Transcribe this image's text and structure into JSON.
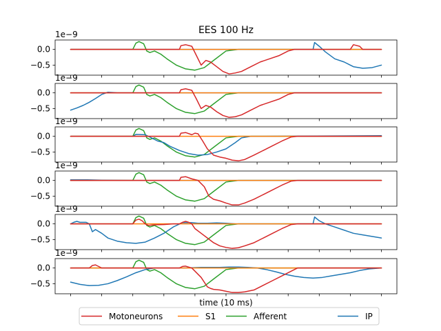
{
  "chart_data": {
    "type": "line",
    "title": "EES 100 Hz",
    "xlabel": "time (10 ms)",
    "ylabel": "",
    "offset_label": "1e−9",
    "yticks": [
      0.0,
      -0.5
    ],
    "ytick_labels": [
      "0.0",
      "−0.5"
    ],
    "xlim": [
      0,
      100
    ],
    "ylim": [
      -0.82,
      0.3
    ],
    "legend": {
      "placement": "bottom-center",
      "entries": [
        "Motoneurons",
        "S1",
        "Afferent",
        "IP"
      ]
    },
    "colors": {
      "Motoneurons": "#d62728",
      "S1": "#ff7f0e",
      "Afferent": "#2ca02c",
      "IP": "#1f77b4"
    },
    "subplots": [
      {
        "series": [
          {
            "name": "IP",
            "x": [
              0,
              78,
              78.5,
              80,
              82,
              85,
              88,
              91,
              94,
              97,
              100
            ],
            "y": [
              0,
              0,
              0.22,
              0.1,
              -0.08,
              -0.3,
              -0.4,
              -0.55,
              -0.6,
              -0.58,
              -0.5
            ]
          },
          {
            "name": "S1",
            "x": [
              0,
              100
            ],
            "y": [
              0,
              0
            ]
          },
          {
            "name": "Afferent",
            "x": [
              0,
              20,
              21,
              22,
              23.5,
              24.5,
              25.5,
              27,
              29,
              31,
              34,
              37,
              40,
              43,
              46,
              50,
              54,
              72,
              100
            ],
            "y": [
              0,
              0,
              0.2,
              0.25,
              0.18,
              -0.05,
              -0.1,
              -0.05,
              -0.15,
              -0.3,
              -0.5,
              -0.62,
              -0.66,
              -0.58,
              -0.35,
              -0.05,
              0,
              0,
              0
            ]
          },
          {
            "name": "Motoneurons",
            "x": [
              0,
              35,
              35.5,
              37,
              39,
              40.5,
              42,
              43.5,
              45,
              47,
              49,
              51,
              53,
              55,
              58,
              61,
              64,
              67,
              70,
              72,
              74,
              90,
              91,
              93,
              94,
              100
            ],
            "y": [
              0,
              0,
              0.12,
              0.15,
              0.1,
              -0.2,
              -0.5,
              -0.35,
              -0.4,
              -0.55,
              -0.7,
              -0.78,
              -0.75,
              -0.7,
              -0.55,
              -0.4,
              -0.3,
              -0.2,
              -0.05,
              0,
              0,
              0,
              0.15,
              0.1,
              0,
              0
            ]
          }
        ]
      },
      {
        "series": [
          {
            "name": "IP",
            "x": [
              0,
              2,
              4,
              6,
              8,
              10,
              12,
              14,
              15,
              17,
              20,
              30,
              40,
              100
            ],
            "y": [
              -0.55,
              -0.48,
              -0.4,
              -0.3,
              -0.18,
              -0.05,
              0.02,
              0.01,
              0,
              0,
              0,
              0,
              0,
              0
            ]
          },
          {
            "name": "S1",
            "x": [
              0,
              100
            ],
            "y": [
              0,
              0
            ]
          },
          {
            "name": "Afferent",
            "x": [
              0,
              20,
              21,
              22,
              23.5,
              24.5,
              25.5,
              27,
              29,
              31,
              34,
              37,
              40,
              43,
              46,
              50,
              54,
              72,
              100
            ],
            "y": [
              0,
              0,
              0.2,
              0.25,
              0.18,
              -0.05,
              -0.1,
              -0.05,
              -0.15,
              -0.3,
              -0.5,
              -0.62,
              -0.66,
              -0.58,
              -0.35,
              -0.05,
              0,
              0,
              0
            ]
          },
          {
            "name": "Motoneurons",
            "x": [
              0,
              35,
              35.5,
              37,
              39,
              40.5,
              42,
              43.5,
              45,
              47,
              49,
              51,
              53,
              55,
              58,
              61,
              64,
              67,
              70,
              72,
              74,
              100
            ],
            "y": [
              0,
              0,
              0.1,
              0.13,
              0.08,
              -0.2,
              -0.5,
              -0.4,
              -0.45,
              -0.6,
              -0.72,
              -0.78,
              -0.76,
              -0.7,
              -0.55,
              -0.4,
              -0.3,
              -0.2,
              -0.05,
              0,
              0,
              0
            ]
          }
        ]
      },
      {
        "series": [
          {
            "name": "IP",
            "x": [
              0,
              20,
              21,
              24,
              26,
              28,
              30,
              32,
              35,
              38,
              41,
              44,
              47,
              50,
              53,
              55,
              58,
              62,
              100
            ],
            "y": [
              0,
              0,
              0.06,
              0.05,
              -0.05,
              -0.15,
              -0.2,
              -0.32,
              -0.45,
              -0.55,
              -0.6,
              -0.58,
              -0.5,
              -0.4,
              -0.2,
              -0.05,
              0,
              0,
              0.02
            ]
          },
          {
            "name": "S1",
            "x": [
              0,
              100
            ],
            "y": [
              0,
              0
            ]
          },
          {
            "name": "Afferent",
            "x": [
              0,
              20,
              21,
              22,
              23.5,
              24.5,
              25.5,
              27,
              29,
              31,
              34,
              37,
              40,
              43,
              46,
              50,
              54,
              72,
              100
            ],
            "y": [
              0,
              0,
              0.2,
              0.25,
              0.18,
              -0.05,
              -0.1,
              -0.05,
              -0.15,
              -0.3,
              -0.5,
              -0.62,
              -0.66,
              -0.58,
              -0.35,
              -0.05,
              0,
              0,
              0
            ]
          },
          {
            "name": "Motoneurons",
            "x": [
              0,
              35,
              35.5,
              37,
              39,
              40,
              41,
              42.5,
              44,
              46,
              48,
              50,
              52,
              54,
              56,
              59,
              62,
              65,
              68,
              71,
              73,
              100
            ],
            "y": [
              0,
              0,
              0.1,
              0.12,
              0.05,
              0.1,
              0.08,
              -0.15,
              -0.4,
              -0.6,
              -0.66,
              -0.7,
              -0.76,
              -0.78,
              -0.74,
              -0.6,
              -0.45,
              -0.3,
              -0.15,
              -0.02,
              0,
              0
            ]
          }
        ]
      },
      {
        "series": [
          {
            "name": "IP",
            "x": [
              0,
              5,
              10,
              20,
              100
            ],
            "y": [
              0.02,
              0.02,
              0.01,
              0,
              0
            ]
          },
          {
            "name": "S1",
            "x": [
              0,
              100
            ],
            "y": [
              0,
              0
            ]
          },
          {
            "name": "Afferent",
            "x": [
              0,
              20,
              21,
              22,
              23.5,
              24.5,
              25.5,
              27,
              29,
              31,
              34,
              37,
              40,
              43,
              46,
              50,
              54,
              72,
              100
            ],
            "y": [
              0,
              0,
              0.2,
              0.25,
              0.18,
              -0.05,
              -0.1,
              -0.05,
              -0.15,
              -0.3,
              -0.5,
              -0.62,
              -0.66,
              -0.58,
              -0.35,
              -0.05,
              0,
              0,
              0
            ]
          },
          {
            "name": "Motoneurons",
            "x": [
              0,
              35,
              35.5,
              37,
              39,
              41,
              43,
              44.5,
              46,
              48,
              50,
              52,
              54,
              56,
              59,
              62,
              65,
              68,
              71,
              73,
              100
            ],
            "y": [
              0,
              0,
              0.1,
              0.12,
              0.05,
              0,
              -0.2,
              -0.5,
              -0.6,
              -0.65,
              -0.72,
              -0.78,
              -0.78,
              -0.72,
              -0.6,
              -0.45,
              -0.3,
              -0.15,
              -0.02,
              0,
              0
            ]
          }
        ]
      },
      {
        "series": [
          {
            "name": "IP",
            "x": [
              0,
              1,
              2,
              3,
              5,
              6,
              7,
              8,
              10,
              12,
              15,
              18,
              21,
              24,
              27,
              30,
              33,
              36,
              39,
              41,
              44,
              47,
              50,
              53,
              58,
              78,
              78.5,
              80,
              82,
              85,
              88,
              91,
              94,
              97,
              100
            ],
            "y": [
              0,
              0.05,
              0.08,
              0.05,
              0.05,
              0,
              -0.25,
              -0.18,
              -0.3,
              -0.45,
              -0.55,
              -0.6,
              -0.62,
              -0.58,
              -0.45,
              -0.3,
              -0.1,
              0.04,
              0.04,
              0.02,
              0.02,
              0.03,
              0.02,
              0,
              0,
              0,
              0.22,
              0.1,
              0,
              -0.1,
              -0.2,
              -0.3,
              -0.35,
              -0.4,
              -0.45
            ]
          },
          {
            "name": "S1",
            "x": [
              0,
              100
            ],
            "y": [
              0,
              0
            ]
          },
          {
            "name": "Afferent",
            "x": [
              0,
              20,
              21,
              22,
              23.5,
              24.5,
              25.5,
              27,
              29,
              31,
              34,
              37,
              40,
              43,
              46,
              50,
              54,
              72,
              100
            ],
            "y": [
              0,
              0,
              0.2,
              0.25,
              0.18,
              -0.05,
              -0.1,
              -0.05,
              -0.15,
              -0.3,
              -0.5,
              -0.62,
              -0.66,
              -0.58,
              -0.35,
              -0.05,
              0,
              0,
              0
            ]
          },
          {
            "name": "Motoneurons",
            "x": [
              0,
              20,
              21,
              22,
              23,
              24,
              25,
              27,
              30,
              33,
              35,
              36,
              37,
              38,
              39,
              40,
              42,
              44,
              46,
              48,
              50,
              52,
              54,
              56,
              59,
              62,
              65,
              68,
              71,
              73,
              100
            ],
            "y": [
              0,
              0,
              0.12,
              0.15,
              0.1,
              0,
              -0.05,
              -0.03,
              -0.02,
              0,
              0,
              0.05,
              0.08,
              0.05,
              0,
              -0.15,
              -0.3,
              -0.45,
              -0.6,
              -0.7,
              -0.75,
              -0.78,
              -0.76,
              -0.7,
              -0.6,
              -0.45,
              -0.3,
              -0.15,
              -0.02,
              0,
              0
            ]
          }
        ]
      },
      {
        "series": [
          {
            "name": "IP",
            "x": [
              0,
              3,
              6,
              9,
              12,
              15,
              18,
              21,
              24,
              27,
              30,
              33,
              36,
              39,
              42,
              45,
              48,
              51,
              54,
              57,
              60,
              63,
              66,
              69,
              72,
              75,
              78,
              81,
              84,
              87,
              90,
              93,
              96,
              100
            ],
            "y": [
              -0.45,
              -0.52,
              -0.56,
              -0.55,
              -0.5,
              -0.4,
              -0.28,
              -0.15,
              -0.05,
              0,
              0,
              0,
              0,
              0.01,
              0.02,
              0.02,
              0.02,
              0.03,
              0.03,
              0.02,
              0,
              -0.05,
              -0.12,
              -0.2,
              -0.26,
              -0.3,
              -0.32,
              -0.3,
              -0.25,
              -0.2,
              -0.15,
              -0.08,
              -0.03,
              0
            ]
          },
          {
            "name": "S1",
            "x": [
              0,
              100
            ],
            "y": [
              0,
              0
            ]
          },
          {
            "name": "Afferent",
            "x": [
              0,
              20,
              21,
              22,
              23.5,
              24.5,
              25.5,
              27,
              29,
              31,
              34,
              37,
              40,
              43,
              46,
              50,
              54,
              72,
              100
            ],
            "y": [
              0,
              0,
              0.2,
              0.25,
              0.18,
              -0.05,
              -0.1,
              -0.05,
              -0.15,
              -0.3,
              -0.5,
              -0.62,
              -0.66,
              -0.58,
              -0.35,
              -0.05,
              0,
              0,
              0
            ]
          },
          {
            "name": "Motoneurons",
            "x": [
              0,
              6,
              7,
              8,
              9,
              10,
              35,
              36,
              37,
              38,
              39,
              40,
              42,
              44,
              45,
              46,
              48,
              50,
              52,
              54,
              56,
              59,
              62,
              65,
              68,
              71,
              73,
              100
            ],
            "y": [
              0,
              0,
              0.08,
              0.1,
              0.05,
              0,
              0,
              0.05,
              0.06,
              0.03,
              0,
              -0.1,
              -0.3,
              -0.6,
              -0.65,
              -0.68,
              -0.7,
              -0.74,
              -0.78,
              -0.78,
              -0.76,
              -0.7,
              -0.55,
              -0.4,
              -0.25,
              -0.1,
              0,
              0
            ]
          }
        ]
      }
    ]
  }
}
